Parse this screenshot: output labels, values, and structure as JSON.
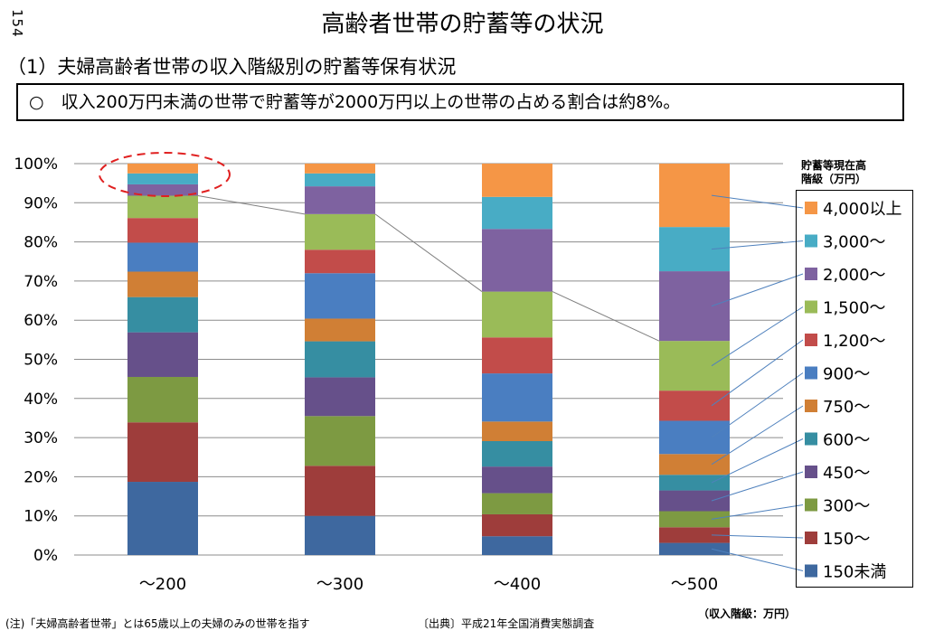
{
  "page_number": "154",
  "title": "高齢者世帯の貯蓄等の状況",
  "subtitle": "（1）夫婦高齢者世帯の収入階級別の貯蓄等保有状況",
  "summary": "○　収入200万円未満の世帯で貯蓄等が2000万円以上の世帯の占める割合は約8%。",
  "note": "(注)「夫婦高齢者世帯」とは65歳以上の夫婦のみの世帯を指す",
  "source": "〔出典〕平成21年全国消費実態調査",
  "x_unit_label": "（収入階級：万円）",
  "legend_title_line1": "貯蓄等現在高",
  "legend_title_line2": "階級（万円）",
  "chart_data": {
    "type": "bar",
    "stacked": true,
    "categories": [
      "～200",
      "～300",
      "～400",
      "～500"
    ],
    "ylim": [
      0,
      100
    ],
    "y_ticks": [
      "0%",
      "10%",
      "20%",
      "30%",
      "40%",
      "50%",
      "60%",
      "70%",
      "80%",
      "90%",
      "100%"
    ],
    "grid": true,
    "legend_position": "right",
    "series": [
      {
        "name": "150未満",
        "color": "#3E689F",
        "values": [
          18.7,
          10.0,
          4.8,
          3.1
        ]
      },
      {
        "name": "150～",
        "color": "#9E3D3B",
        "values": [
          15.2,
          12.8,
          5.6,
          4.0
        ]
      },
      {
        "name": "300～",
        "color": "#7D9A42",
        "values": [
          11.6,
          12.7,
          5.4,
          4.1
        ]
      },
      {
        "name": "450～",
        "color": "#66508A",
        "values": [
          11.4,
          9.9,
          6.8,
          5.3
        ]
      },
      {
        "name": "600～",
        "color": "#368EA2",
        "values": [
          9.0,
          9.2,
          6.5,
          4.0
        ]
      },
      {
        "name": "750～",
        "color": "#D07F35",
        "values": [
          6.5,
          5.8,
          5.0,
          5.3
        ]
      },
      {
        "name": "900～",
        "color": "#4A7EC1",
        "values": [
          7.4,
          11.6,
          12.3,
          8.5
        ]
      },
      {
        "name": "1,200～",
        "color": "#C24C4A",
        "values": [
          6.3,
          6.0,
          9.2,
          7.7
        ]
      },
      {
        "name": "1,500～",
        "color": "#9ABB58",
        "values": [
          5.7,
          9.1,
          11.7,
          12.7
        ]
      },
      {
        "name": "2,000～",
        "color": "#7E62A0",
        "values": [
          2.9,
          7.1,
          16.0,
          17.8
        ]
      },
      {
        "name": "3,000～",
        "color": "#48ACC5",
        "values": [
          2.8,
          3.3,
          8.2,
          11.3
        ]
      },
      {
        "name": "4,000以上",
        "color": "#F59646",
        "values": [
          2.5,
          2.5,
          8.5,
          16.2
        ]
      }
    ]
  }
}
